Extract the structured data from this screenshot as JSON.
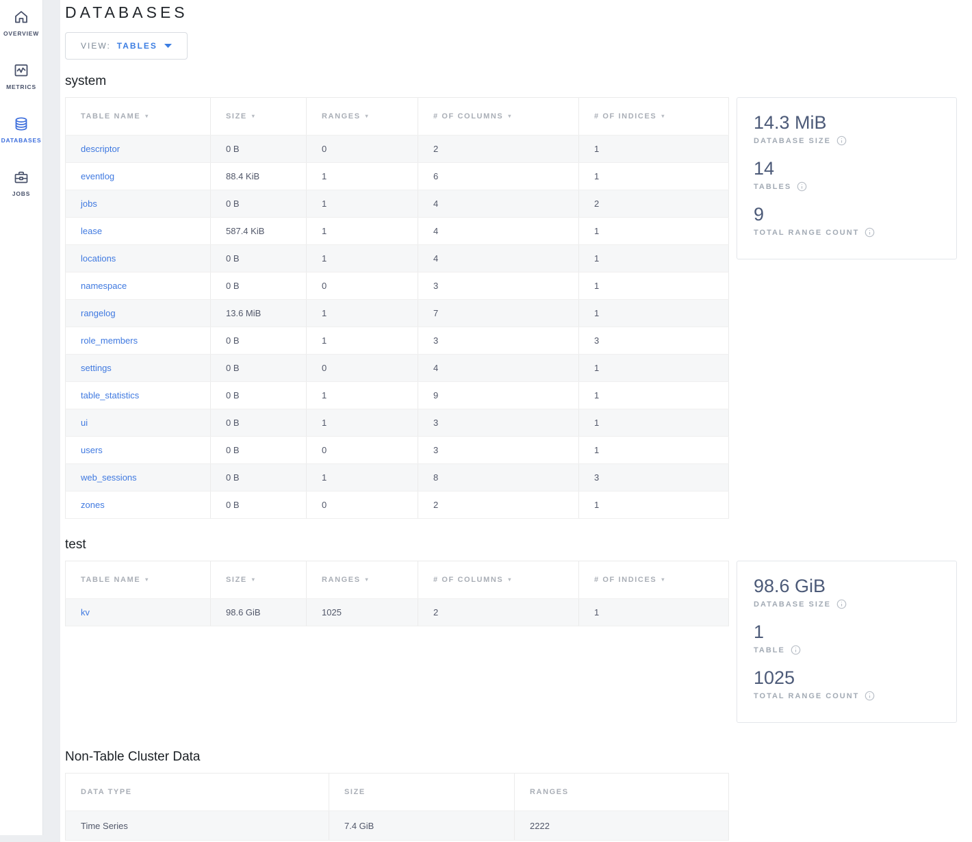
{
  "colors": {
    "accent_blue": "#3b6ddc",
    "link_blue": "#3f79e0",
    "page_background": "#eceef1",
    "metric_value": "#4c5a78",
    "muted_label": "#a2aab4"
  },
  "sidebar": {
    "items": [
      {
        "label": "OVERVIEW",
        "icon": "home",
        "active": false
      },
      {
        "label": "METRICS",
        "icon": "metrics-chart",
        "active": false
      },
      {
        "label": "DATABASES",
        "icon": "database",
        "active": true
      },
      {
        "label": "JOBS",
        "icon": "briefcase",
        "active": false
      }
    ]
  },
  "header": {
    "title": "DATABASES"
  },
  "view_selector": {
    "prefix": "VIEW:",
    "value": "TABLES"
  },
  "sections": [
    {
      "name": "system",
      "columns": [
        "TABLE NAME",
        "SIZE",
        "RANGES",
        "# OF COLUMNS",
        "# OF INDICES"
      ],
      "rows": [
        [
          "descriptor",
          "0 B",
          "0",
          "2",
          "1"
        ],
        [
          "eventlog",
          "88.4 KiB",
          "1",
          "6",
          "1"
        ],
        [
          "jobs",
          "0 B",
          "1",
          "4",
          "2"
        ],
        [
          "lease",
          "587.4 KiB",
          "1",
          "4",
          "1"
        ],
        [
          "locations",
          "0 B",
          "1",
          "4",
          "1"
        ],
        [
          "namespace",
          "0 B",
          "0",
          "3",
          "1"
        ],
        [
          "rangelog",
          "13.6 MiB",
          "1",
          "7",
          "1"
        ],
        [
          "role_members",
          "0 B",
          "1",
          "3",
          "3"
        ],
        [
          "settings",
          "0 B",
          "0",
          "4",
          "1"
        ],
        [
          "table_statistics",
          "0 B",
          "1",
          "9",
          "1"
        ],
        [
          "ui",
          "0 B",
          "1",
          "3",
          "1"
        ],
        [
          "users",
          "0 B",
          "0",
          "3",
          "1"
        ],
        [
          "web_sessions",
          "0 B",
          "1",
          "8",
          "3"
        ],
        [
          "zones",
          "0 B",
          "0",
          "2",
          "1"
        ]
      ],
      "summary": {
        "metrics": [
          {
            "value": "14.3 MiB",
            "label": "DATABASE SIZE"
          },
          {
            "value": "14",
            "label": "TABLES"
          },
          {
            "value": "9",
            "label": "TOTAL RANGE COUNT"
          }
        ]
      }
    },
    {
      "name": "test",
      "columns": [
        "TABLE NAME",
        "SIZE",
        "RANGES",
        "# OF COLUMNS",
        "# OF INDICES"
      ],
      "rows": [
        [
          "kv",
          "98.6 GiB",
          "1025",
          "2",
          "1"
        ]
      ],
      "summary": {
        "metrics": [
          {
            "value": "98.6 GiB",
            "label": "DATABASE SIZE"
          },
          {
            "value": "1",
            "label": "TABLE"
          },
          {
            "value": "1025",
            "label": "TOTAL RANGE COUNT"
          }
        ]
      }
    }
  ],
  "non_table": {
    "title": "Non-Table Cluster Data",
    "columns": [
      "DATA TYPE",
      "SIZE",
      "RANGES"
    ],
    "rows": [
      [
        "Time Series",
        "7.4 GiB",
        "2222"
      ]
    ]
  }
}
